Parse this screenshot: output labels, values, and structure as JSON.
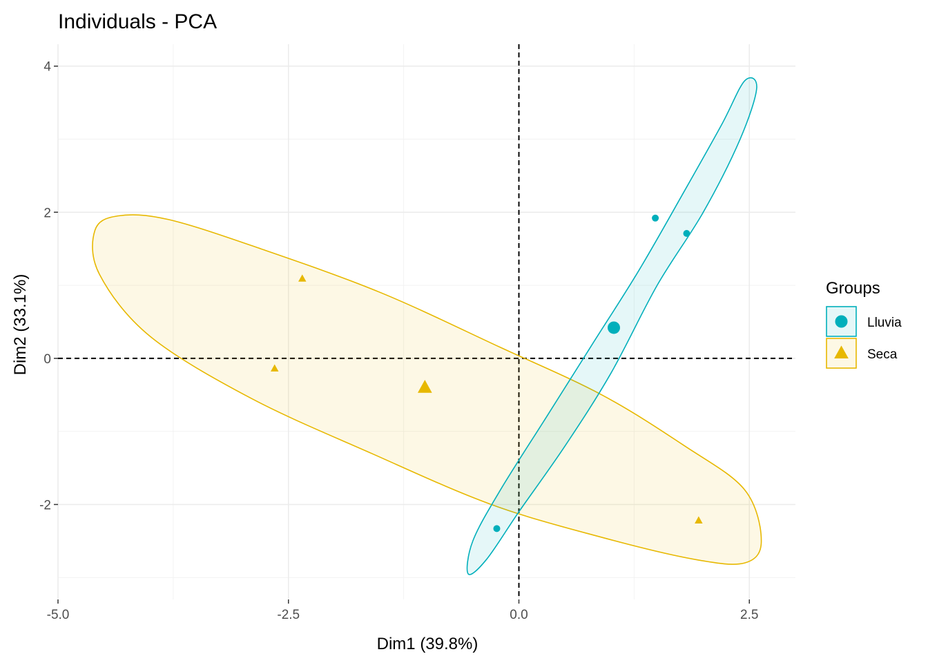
{
  "chart_data": {
    "type": "scatter",
    "title": "Individuals - PCA",
    "xlabel": "Dim1 (39.8%)",
    "ylabel": "Dim2 (33.1%)",
    "xlim": [
      -5.0,
      3.0
    ],
    "ylim": [
      -3.3,
      4.3
    ],
    "x_ticks": [
      -5.0,
      -2.5,
      0.0,
      2.5
    ],
    "x_tick_labels": [
      "-5.0",
      "-2.5",
      "0.0",
      "2.5"
    ],
    "y_ticks": [
      -2,
      0,
      2,
      4
    ],
    "y_tick_labels": [
      "-2",
      "0",
      "2",
      "4"
    ],
    "grid": true,
    "reference_lines": {
      "x": 0,
      "y": 0,
      "style": "dashed"
    },
    "legend": {
      "title": "Groups",
      "position": "right"
    },
    "series": [
      {
        "name": "Lluvia",
        "marker": "circle",
        "color": "#00AFBB",
        "points": [
          {
            "x": 1.48,
            "y": 1.92
          },
          {
            "x": 1.82,
            "y": 1.71
          },
          {
            "x": -0.24,
            "y": -2.33
          }
        ],
        "centroid": {
          "x": 1.03,
          "y": 0.42
        },
        "ellipse": [
          [
            2.45,
            3.8
          ],
          [
            2.58,
            3.7
          ],
          [
            2.4,
            3.0
          ],
          [
            2.0,
            2.0
          ],
          [
            1.5,
            1.0
          ],
          [
            1.0,
            -0.2
          ],
          [
            0.5,
            -1.2
          ],
          [
            0.0,
            -2.1
          ],
          [
            -0.35,
            -2.75
          ],
          [
            -0.55,
            -2.95
          ],
          [
            -0.5,
            -2.5
          ],
          [
            -0.2,
            -1.8
          ],
          [
            0.3,
            -0.8
          ],
          [
            0.8,
            0.2
          ],
          [
            1.3,
            1.2
          ],
          [
            1.8,
            2.3
          ],
          [
            2.2,
            3.2
          ]
        ]
      },
      {
        "name": "Seca",
        "marker": "triangle",
        "color": "#E7B800",
        "points": [
          {
            "x": -2.35,
            "y": 1.09
          },
          {
            "x": -2.65,
            "y": -0.14
          },
          {
            "x": 1.95,
            "y": -2.22
          }
        ],
        "centroid": {
          "x": -1.02,
          "y": -0.4
        },
        "ellipse": [
          [
            -4.6,
            1.75
          ],
          [
            -4.35,
            1.95
          ],
          [
            -3.8,
            1.9
          ],
          [
            -2.8,
            1.5
          ],
          [
            -1.5,
            0.9
          ],
          [
            -0.2,
            0.15
          ],
          [
            0.9,
            -0.5
          ],
          [
            1.8,
            -1.2
          ],
          [
            2.45,
            -1.8
          ],
          [
            2.63,
            -2.5
          ],
          [
            2.45,
            -2.8
          ],
          [
            1.9,
            -2.75
          ],
          [
            0.9,
            -2.45
          ],
          [
            -0.3,
            -2.0
          ],
          [
            -1.6,
            -1.3
          ],
          [
            -2.9,
            -0.55
          ],
          [
            -4.0,
            0.3
          ],
          [
            -4.55,
            1.15
          ]
        ]
      }
    ]
  }
}
